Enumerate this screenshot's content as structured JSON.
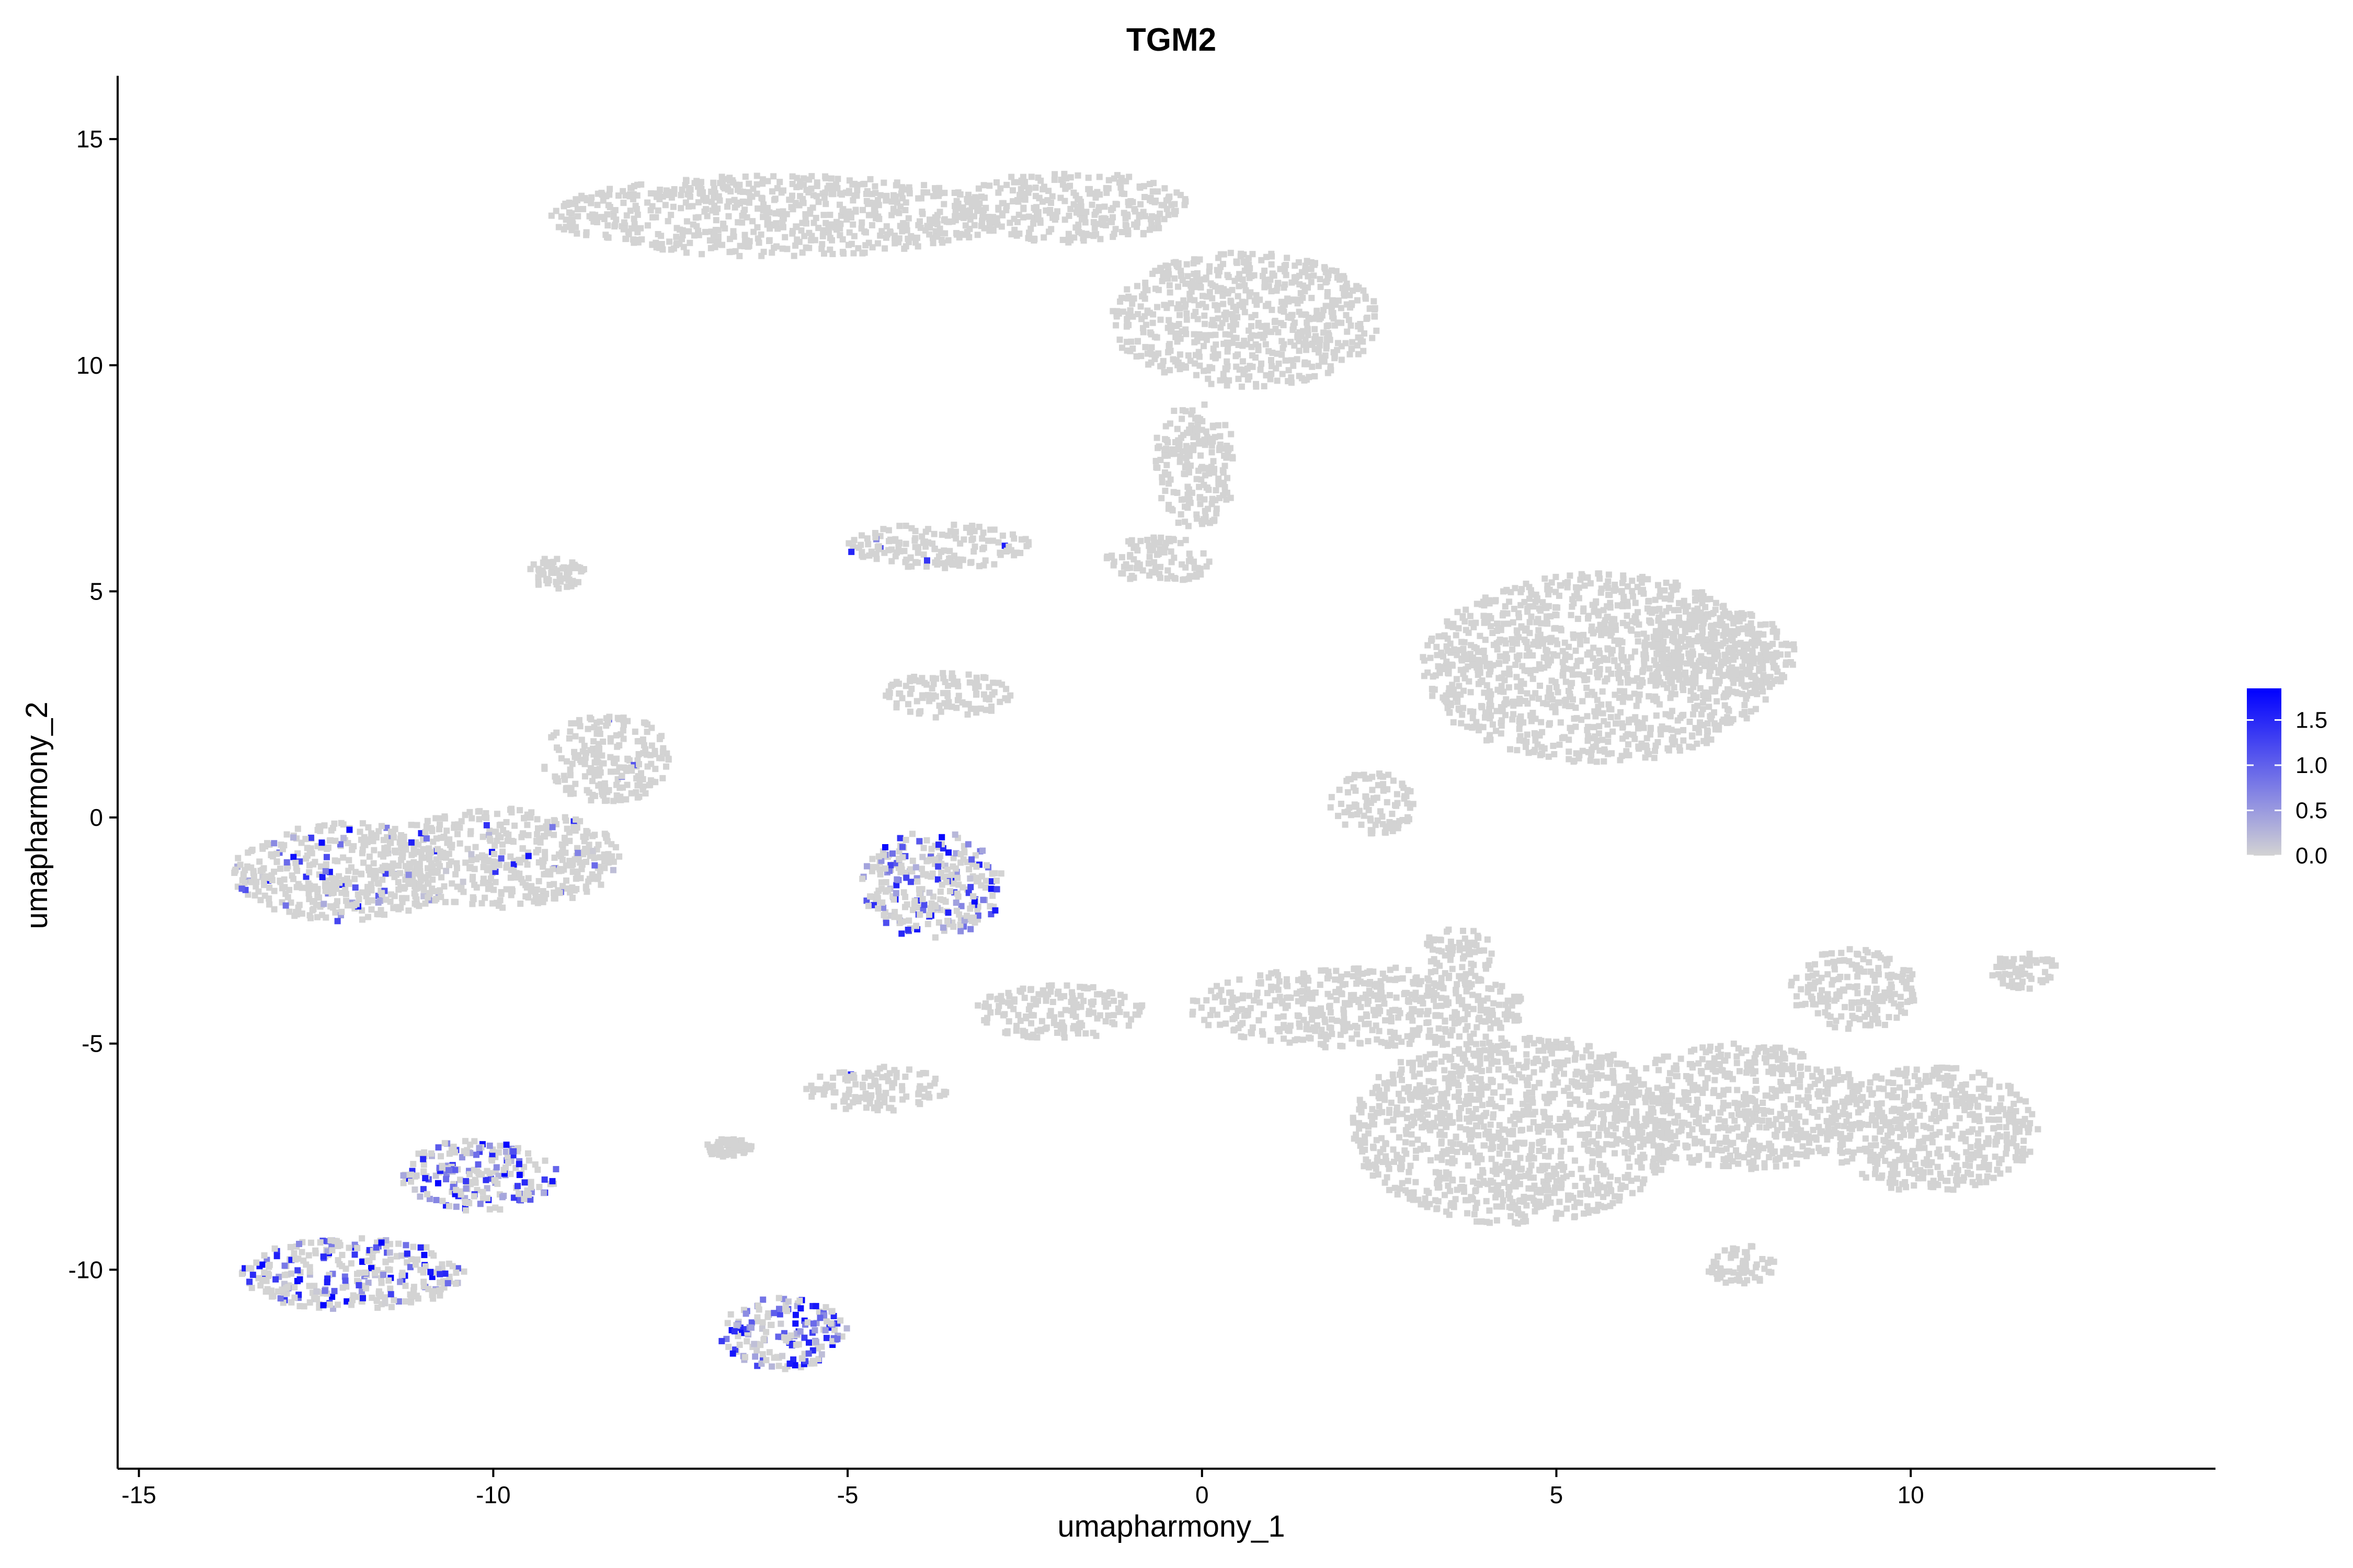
{
  "chart_data": {
    "type": "scatter",
    "title": "TGM2",
    "xlabel": "umapharmony_1",
    "ylabel": "umapharmony_2",
    "xlim": [
      -15.3,
      14.3
    ],
    "ylim": [
      -14.4,
      16.4
    ],
    "xticks": [
      {
        "value": -15,
        "label": "-15"
      },
      {
        "value": -10,
        "label": "-10"
      },
      {
        "value": -5,
        "label": "-5"
      },
      {
        "value": 0,
        "label": "0"
      },
      {
        "value": 5,
        "label": "5"
      },
      {
        "value": 10,
        "label": "10"
      }
    ],
    "yticks": [
      {
        "value": 15,
        "label": "15"
      },
      {
        "value": 10,
        "label": "10"
      },
      {
        "value": 5,
        "label": "5"
      },
      {
        "value": 0,
        "label": "0"
      },
      {
        "value": -5,
        "label": "-5"
      },
      {
        "value": -10,
        "label": "-10"
      }
    ],
    "colorscale": {
      "low_color": "#d3d3d3",
      "high_color": "#0000ff",
      "min": 0,
      "max": 1.85,
      "ticks": [
        {
          "value": 0.0,
          "label": "0.0"
        },
        {
          "value": 0.5,
          "label": "0.5"
        },
        {
          "value": 1.0,
          "label": "1.0"
        },
        {
          "value": 1.5,
          "label": "1.5"
        }
      ]
    },
    "clusters": [
      {
        "center": [
          -6.0,
          13.3
        ],
        "radius": [
          3.2,
          0.9
        ],
        "expression": 0.0
      },
      {
        "center": [
          -1.8,
          13.5
        ],
        "radius": [
          1.6,
          0.8
        ],
        "expression": 0.0
      },
      {
        "center": [
          0.6,
          11.0
        ],
        "radius": [
          1.9,
          1.5
        ],
        "expression": 0.0
      },
      {
        "center": [
          -0.1,
          7.8
        ],
        "radius": [
          0.6,
          1.4
        ],
        "expression": 0.0
      },
      {
        "center": [
          -3.7,
          6.0
        ],
        "radius": [
          1.3,
          0.5
        ],
        "expression": 0.02
      },
      {
        "center": [
          -0.6,
          5.7
        ],
        "radius": [
          0.8,
          0.5
        ],
        "expression": 0.0
      },
      {
        "center": [
          5.6,
          3.3
        ],
        "radius": [
          2.5,
          2.1
        ],
        "expression": 0.0
      },
      {
        "center": [
          7.3,
          3.6
        ],
        "radius": [
          1.1,
          1.0
        ],
        "expression": 0.0
      },
      {
        "center": [
          -3.6,
          2.7
        ],
        "radius": [
          0.9,
          0.5
        ],
        "expression": 0.0
      },
      {
        "center": [
          -12.1,
          -1.2
        ],
        "radius": [
          1.6,
          1.1
        ],
        "expression": 0.12
      },
      {
        "center": [
          -9.9,
          -0.9
        ],
        "radius": [
          1.7,
          1.1
        ],
        "expression": 0.05
      },
      {
        "center": [
          -8.4,
          1.3
        ],
        "radius": [
          0.9,
          1.0
        ],
        "expression": 0.02
      },
      {
        "center": [
          -9.1,
          5.4
        ],
        "radius": [
          0.4,
          0.35
        ],
        "expression": 0.0
      },
      {
        "center": [
          -3.8,
          -1.5
        ],
        "radius": [
          1.0,
          1.2
        ],
        "expression": 0.35
      },
      {
        "center": [
          -4.6,
          -6.0
        ],
        "radius": [
          1.0,
          0.5
        ],
        "expression": 0.02
      },
      {
        "center": [
          -2.0,
          -4.3
        ],
        "radius": [
          1.2,
          0.6
        ],
        "expression": 0.0
      },
      {
        "center": [
          2.2,
          -4.2
        ],
        "radius": [
          2.4,
          0.9
        ],
        "expression": 0.0
      },
      {
        "center": [
          4.4,
          -6.9
        ],
        "radius": [
          2.3,
          2.1
        ],
        "expression": 0.0
      },
      {
        "center": [
          7.6,
          -6.4
        ],
        "radius": [
          1.8,
          1.4
        ],
        "expression": 0.0
      },
      {
        "center": [
          10.3,
          -6.9
        ],
        "radius": [
          1.5,
          1.4
        ],
        "expression": 0.0
      },
      {
        "center": [
          9.2,
          -3.8
        ],
        "radius": [
          0.9,
          0.9
        ],
        "expression": 0.0
      },
      {
        "center": [
          11.6,
          -3.4
        ],
        "radius": [
          0.5,
          0.4
        ],
        "expression": 0.0
      },
      {
        "center": [
          7.6,
          -9.9
        ],
        "radius": [
          0.5,
          0.45
        ],
        "expression": 0.0
      },
      {
        "center": [
          -10.2,
          -7.9
        ],
        "radius": [
          1.1,
          0.8
        ],
        "expression": 0.45
      },
      {
        "center": [
          -12.0,
          -10.1
        ],
        "radius": [
          1.6,
          0.8
        ],
        "expression": 0.3
      },
      {
        "center": [
          -5.9,
          -11.4
        ],
        "radius": [
          0.9,
          0.8
        ],
        "expression": 0.55
      },
      {
        "center": [
          -6.7,
          -7.3
        ],
        "radius": [
          0.35,
          0.2
        ],
        "expression": 0.0
      },
      {
        "center": [
          3.6,
          -3.0
        ],
        "radius": [
          0.5,
          0.6
        ],
        "expression": 0.0
      },
      {
        "center": [
          2.4,
          0.3
        ],
        "radius": [
          0.6,
          0.7
        ],
        "expression": 0.0
      }
    ]
  }
}
